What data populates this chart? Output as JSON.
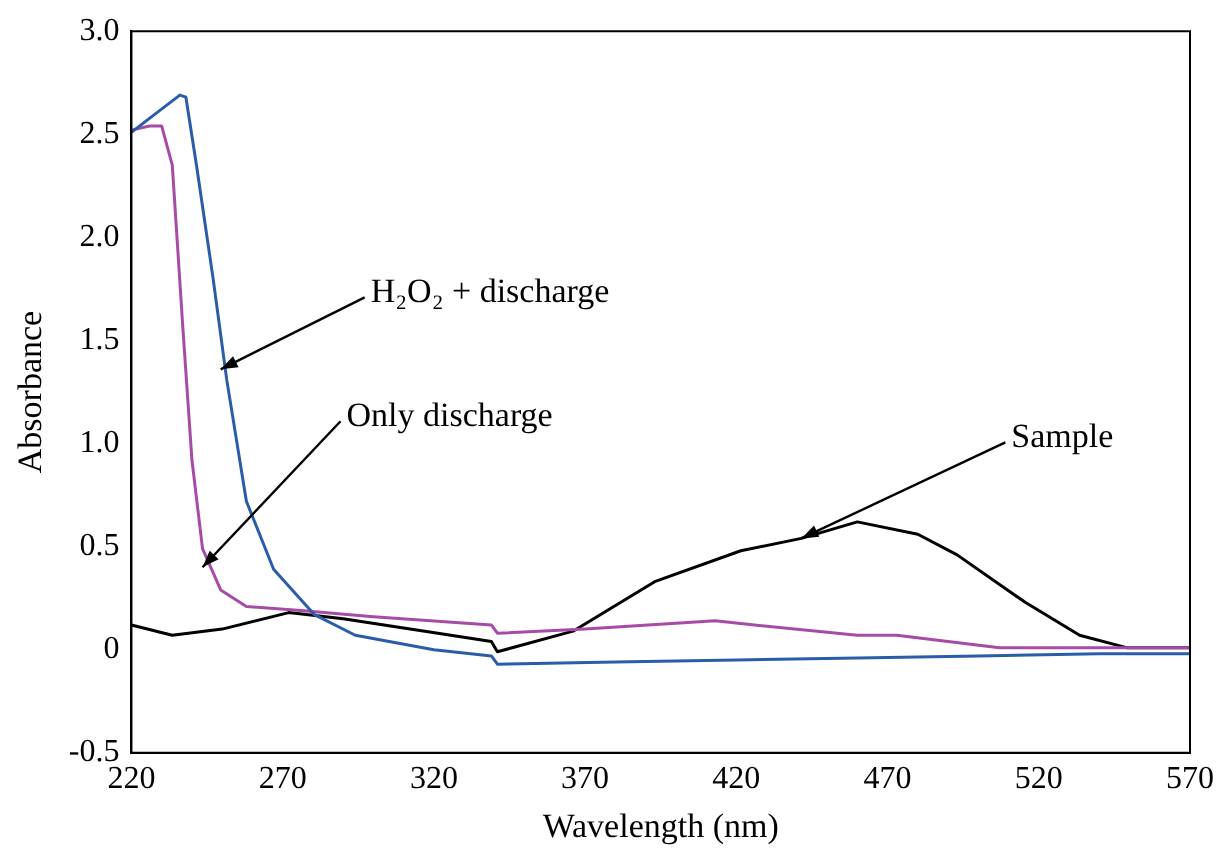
{
  "chart_data": {
    "type": "line",
    "xlabel": "Wavelength (nm)",
    "ylabel": "Absorbance",
    "xlim": [
      220,
      570
    ],
    "xticks": [
      220,
      270,
      320,
      370,
      420,
      470,
      520,
      570
    ],
    "ylim": [
      -0.5,
      3.0
    ],
    "yticks": [
      -0.5,
      {
        "value": 0,
        "label": "0"
      },
      0.5,
      {
        "value": 1,
        "label": "1.0"
      },
      1.5,
      {
        "value": 2,
        "label": "2.0"
      },
      2.5,
      {
        "value": 3,
        "label": "3.0"
      }
    ],
    "grid": false,
    "legend": false,
    "marker": "none",
    "line_style": "solid",
    "series": [
      {
        "color": "#2a5caa",
        "x": [
          220,
          228,
          236,
          238,
          241.5,
          247,
          251.5,
          258,
          267,
          280.5,
          294,
          320,
          339,
          341,
          380,
          420,
          460,
          500,
          540,
          570
        ],
        "values": [
          2.51,
          2.6,
          2.69,
          2.68,
          2.35,
          1.8,
          1.31,
          0.72,
          0.39,
          0.17,
          0.07,
          0.0,
          -0.03,
          -0.07,
          -0.06,
          -0.05,
          -0.04,
          -0.03,
          -0.02,
          -0.02
        ]
      },
      {
        "color": "#a64ca6",
        "x": [
          220,
          226,
          230,
          233.5,
          237,
          240,
          243.5,
          249.5,
          258,
          276,
          300,
          339,
          341,
          370,
          413,
          426,
          460,
          473,
          507,
          540,
          570
        ],
        "values": [
          2.52,
          2.54,
          2.54,
          2.35,
          1.56,
          0.92,
          0.49,
          0.29,
          0.21,
          0.19,
          0.16,
          0.12,
          0.08,
          0.1,
          0.14,
          0.12,
          0.07,
          0.07,
          0.01,
          0.01,
          0.01
        ]
      },
      {
        "color": "#000000",
        "x": [
          220,
          233.5,
          250,
          272,
          290,
          317,
          339,
          341,
          366,
          393,
          421.5,
          441.5,
          460,
          480,
          493,
          515.5,
          533.5,
          549,
          570
        ],
        "values": [
          0.12,
          0.07,
          0.1,
          0.18,
          0.15,
          0.09,
          0.04,
          -0.01,
          0.09,
          0.33,
          0.48,
          0.54,
          0.62,
          0.56,
          0.46,
          0.23,
          0.07,
          0.01,
          0.01
        ]
      }
    ],
    "annotations": [
      {
        "text": "H₂O₂ + discharge",
        "x": 249.5,
        "y": 1.36
      },
      {
        "text": "Only discharge",
        "x": 243.5,
        "y": 0.4
      },
      {
        "text": "Sample",
        "x": 441.5,
        "y": 0.54
      }
    ]
  }
}
